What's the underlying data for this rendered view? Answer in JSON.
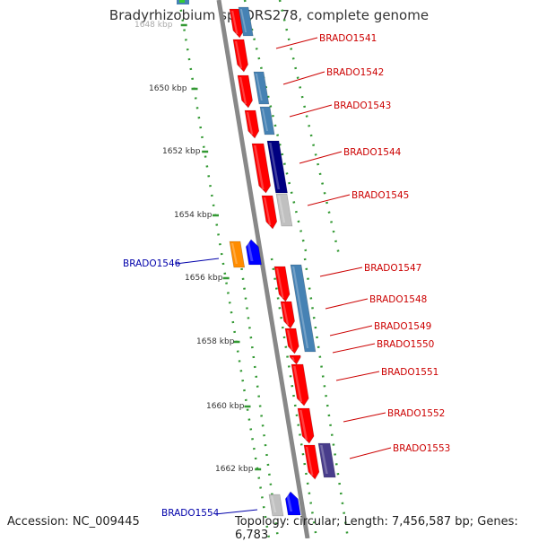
{
  "title": "Bradyrhizobium sp. ORS278, complete genome",
  "footer": {
    "accession": "Accession: NC_009445",
    "topology": "Topology: circular; Length: 7,456,587 bp; Genes: 6,783"
  },
  "colors": {
    "backbone": "#888888",
    "track_dots": "#339933",
    "right_labels": "#cc0000",
    "left_labels": "#0000aa",
    "gene_red": "#ff0000",
    "gene_steelblue": "#4682b4",
    "gene_navy": "#000080",
    "gene_gray": "#c0c0c0",
    "gene_orange": "#ff8c00",
    "gene_blue": "#0000ff",
    "gene_purple": "#483d8b"
  },
  "kbp_ticks": [
    "1648 kbp",
    "1650 kbp",
    "1652 kbp",
    "1654 kbp",
    "1656 kbp",
    "1658 kbp",
    "1660 kbp",
    "1662 kbp"
  ],
  "gene_labels_right": [
    "BRADO1541",
    "BRADO1542",
    "BRADO1543",
    "BRADO1544",
    "BRADO1545",
    "BRADO1547",
    "BRADO1548",
    "BRADO1549",
    "BRADO1550",
    "BRADO1551",
    "BRADO1552",
    "BRADO1553"
  ],
  "gene_labels_left": [
    "BRADO1546",
    "BRADO1554"
  ]
}
